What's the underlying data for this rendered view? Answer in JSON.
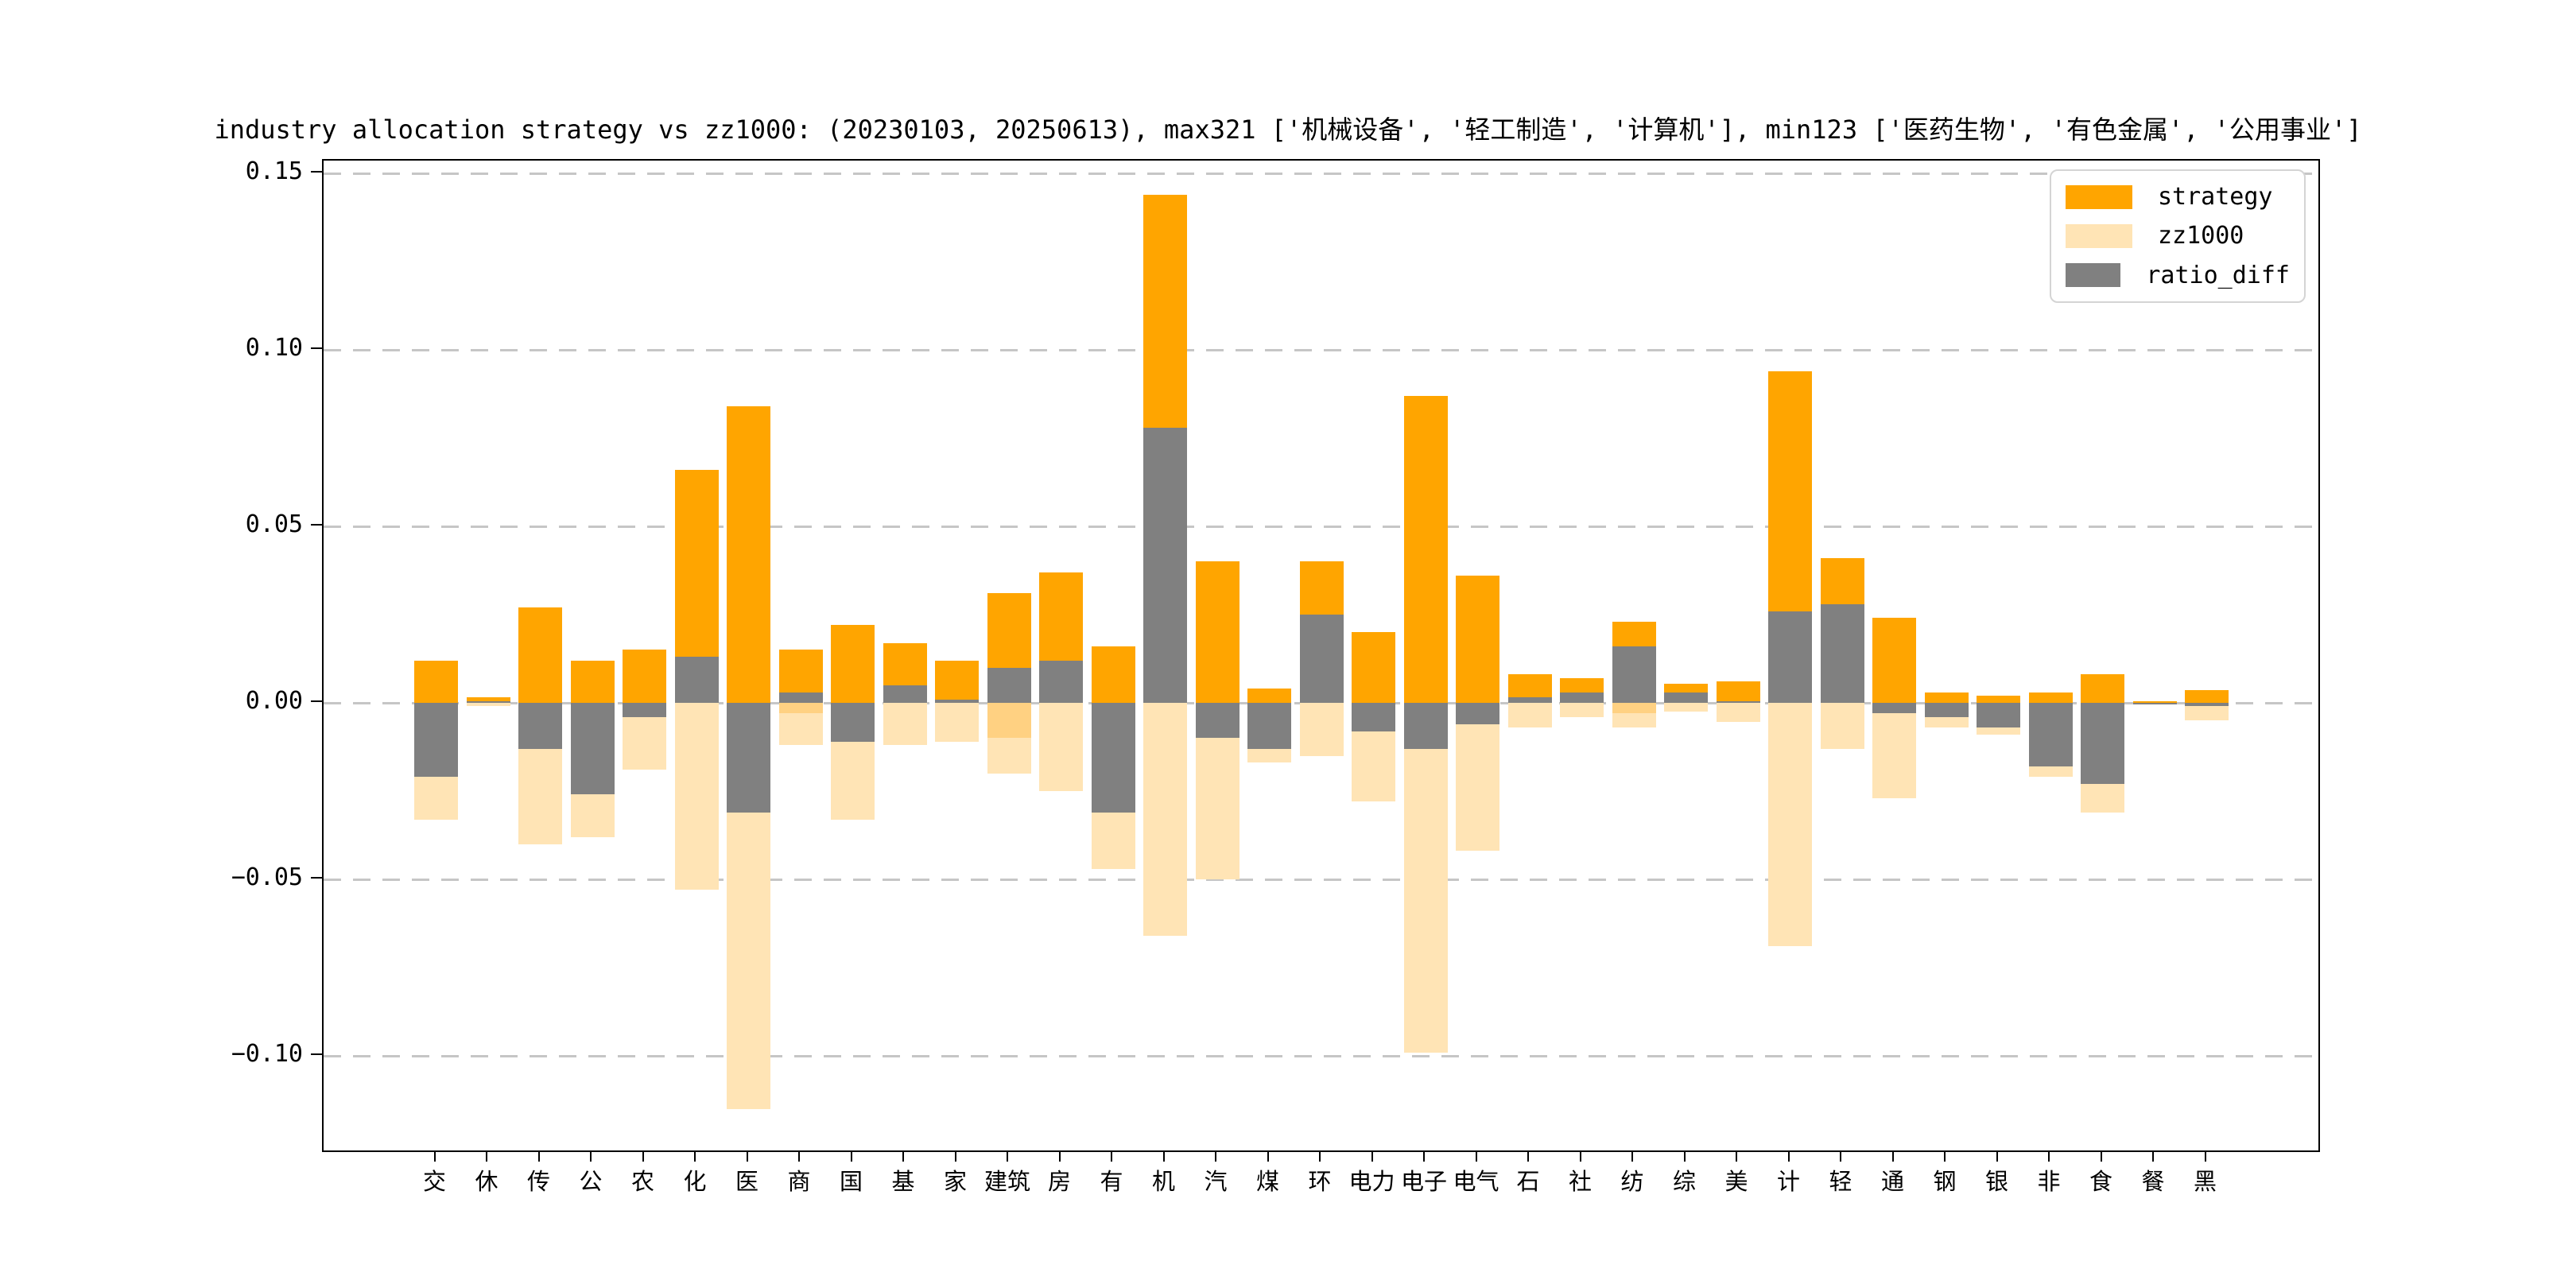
{
  "title": "industry allocation strategy vs zz1000: (20230103, 20250613), max321 ['机械设备', '轻工制造', '计算机'], min123 ['医药生物', '有色金属', '公用事业']",
  "legend": {
    "items": [
      {
        "label": "strategy",
        "color": "#FFA500"
      },
      {
        "label": "zz1000",
        "color": "#FFE4B5"
      },
      {
        "label": "ratio_diff",
        "color": "#808080"
      }
    ]
  },
  "chart_data": {
    "type": "bar",
    "title": "industry allocation strategy vs zz1000: (20230103, 20250613), max321 ['机械设备', '轻工制造', '计算机'], min123 ['医药生物', '有色金属', '公用事业']",
    "categories": [
      "交",
      "休",
      "传",
      "公",
      "农",
      "化",
      "医",
      "商",
      "国",
      "基",
      "家",
      "建筑",
      "房",
      "有",
      "机",
      "汽",
      "煤",
      "环",
      "电力",
      "电子",
      "电气",
      "石",
      "社",
      "纺",
      "综",
      "美",
      "计",
      "轻",
      "通",
      "钢",
      "银",
      "非",
      "食",
      "餐",
      "黑"
    ],
    "series": [
      {
        "name": "strategy",
        "color": "#FFA500",
        "values": [
          0.012,
          0.0015,
          0.027,
          0.012,
          0.015,
          0.066,
          0.084,
          0.015,
          0.022,
          0.017,
          0.012,
          0.031,
          0.037,
          0.016,
          0.144,
          0.04,
          0.004,
          0.04,
          0.02,
          0.087,
          0.036,
          0.008,
          0.007,
          0.023,
          0.0055,
          0.006,
          0.094,
          0.041,
          0.024,
          0.003,
          0.002,
          0.003,
          0.008,
          0.0005,
          0.0035
        ]
      },
      {
        "name": "zz1000",
        "color": "#FFE4B5",
        "values": [
          -0.033,
          -0.001,
          -0.04,
          -0.038,
          -0.019,
          -0.053,
          -0.115,
          -0.012,
          -0.033,
          -0.012,
          -0.011,
          -0.02,
          -0.025,
          -0.047,
          -0.066,
          -0.05,
          -0.017,
          -0.015,
          -0.028,
          -0.099,
          -0.042,
          -0.007,
          -0.004,
          -0.007,
          -0.0025,
          -0.0055,
          -0.069,
          -0.013,
          -0.027,
          -0.007,
          -0.009,
          -0.021,
          -0.031,
          -0.0005,
          -0.005
        ]
      },
      {
        "name": "ratio_diff",
        "color": "#808080",
        "values": [
          -0.021,
          0.0005,
          -0.013,
          -0.026,
          -0.004,
          0.013,
          -0.031,
          0.003,
          -0.011,
          0.005,
          0.001,
          0.01,
          0.012,
          -0.031,
          0.078,
          -0.01,
          -0.013,
          0.025,
          -0.008,
          -0.013,
          -0.006,
          0.0015,
          0.003,
          0.016,
          0.003,
          0.0005,
          0.026,
          0.028,
          -0.003,
          -0.004,
          -0.007,
          -0.018,
          -0.023,
          -0.0005,
          -0.001
        ]
      }
    ],
    "zz1000_overlap": {
      "商": -0.003,
      "建筑": -0.01,
      "纺": -0.003
    },
    "zz1000_overlap_color": "#FFD182",
    "yticks": [
      0.15,
      0.1,
      0.05,
      0.0,
      -0.05,
      -0.1
    ],
    "ytick_labels": [
      "0.15",
      "0.10",
      "0.05",
      "0.00",
      "−0.05",
      "−0.10"
    ],
    "ylim": [
      -0.1268,
      0.1536
    ],
    "xlabel": "",
    "ylabel": "",
    "grid": "horizontal dashed",
    "legend_position": "upper right",
    "legend_entries": [
      "strategy",
      "zz1000",
      "ratio_diff"
    ]
  }
}
